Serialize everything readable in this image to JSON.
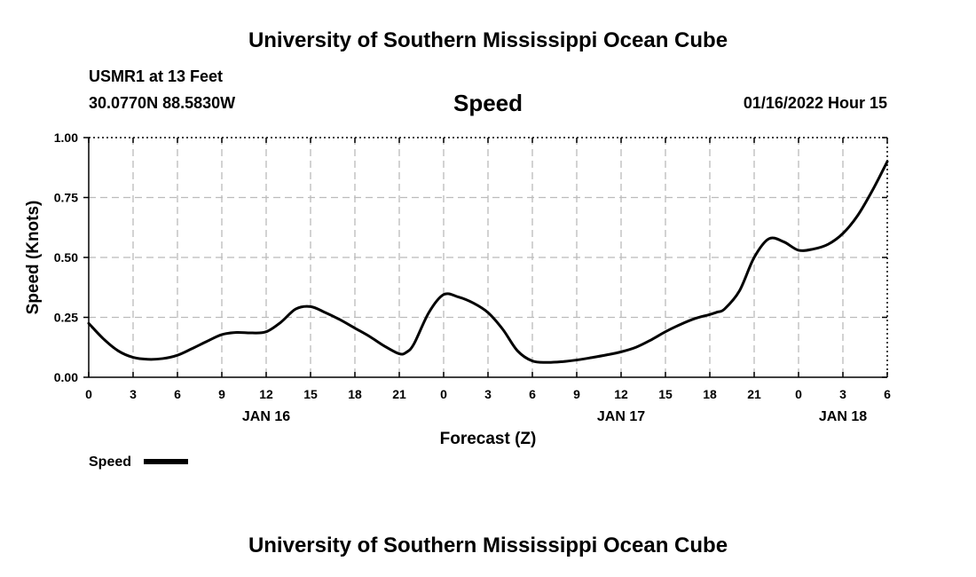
{
  "header": {
    "title": "University of Southern Mississippi Ocean Cube",
    "station": "USMR1 at 13 Feet",
    "coords": "30.0770N  88.5830W",
    "date": "01/16/2022 Hour 15"
  },
  "footer": {
    "title": "University of Southern Mississippi Ocean Cube"
  },
  "chart_data": {
    "type": "line",
    "title": "Speed",
    "xlabel": "Forecast (Z)",
    "ylabel": "Speed (Knots)",
    "ylim": [
      0,
      1
    ],
    "xlim": [
      0,
      54
    ],
    "grid": true,
    "legend_position": "bottom-left",
    "x_ticks": [
      0,
      3,
      6,
      9,
      12,
      15,
      18,
      21,
      24,
      27,
      30,
      33,
      36,
      39,
      42,
      45,
      48,
      51,
      54
    ],
    "x_tick_labels": [
      "0",
      "3",
      "6",
      "9",
      "12",
      "15",
      "18",
      "21",
      "0",
      "3",
      "6",
      "9",
      "12",
      "15",
      "18",
      "21",
      "0",
      "3",
      "6"
    ],
    "y_ticks": [
      0,
      0.25,
      0.5,
      0.75,
      1.0
    ],
    "y_tick_labels": [
      "0.00",
      "0.25",
      "0.50",
      "0.75",
      "1.00"
    ],
    "date_labels": [
      {
        "x": 12,
        "label": "JAN 16"
      },
      {
        "x": 36,
        "label": "JAN 17"
      },
      {
        "x": 51,
        "label": "JAN 18"
      }
    ],
    "series": [
      {
        "name": "Speed",
        "color": "#000000",
        "x": [
          0,
          1,
          2,
          3,
          4,
          5,
          6,
          7,
          8,
          9,
          10,
          11,
          12,
          13,
          14,
          15,
          16,
          17,
          18,
          19,
          20,
          21,
          21.5,
          22,
          23,
          24,
          25,
          26,
          27,
          28,
          29,
          30,
          31,
          32,
          33,
          34,
          35,
          36,
          37,
          38,
          39,
          40,
          41,
          42,
          42.5,
          43,
          44,
          45,
          46,
          47,
          48,
          49,
          50,
          51,
          52,
          53,
          54
        ],
        "values": [
          0.225,
          0.16,
          0.11,
          0.083,
          0.075,
          0.078,
          0.092,
          0.12,
          0.15,
          0.178,
          0.187,
          0.185,
          0.19,
          0.23,
          0.285,
          0.295,
          0.27,
          0.24,
          0.205,
          0.17,
          0.13,
          0.098,
          0.105,
          0.14,
          0.27,
          0.345,
          0.335,
          0.31,
          0.27,
          0.2,
          0.11,
          0.068,
          0.062,
          0.065,
          0.072,
          0.082,
          0.093,
          0.106,
          0.125,
          0.155,
          0.19,
          0.22,
          0.245,
          0.262,
          0.272,
          0.285,
          0.36,
          0.5,
          0.578,
          0.565,
          0.53,
          0.535,
          0.555,
          0.6,
          0.675,
          0.78,
          0.9
        ]
      }
    ]
  }
}
